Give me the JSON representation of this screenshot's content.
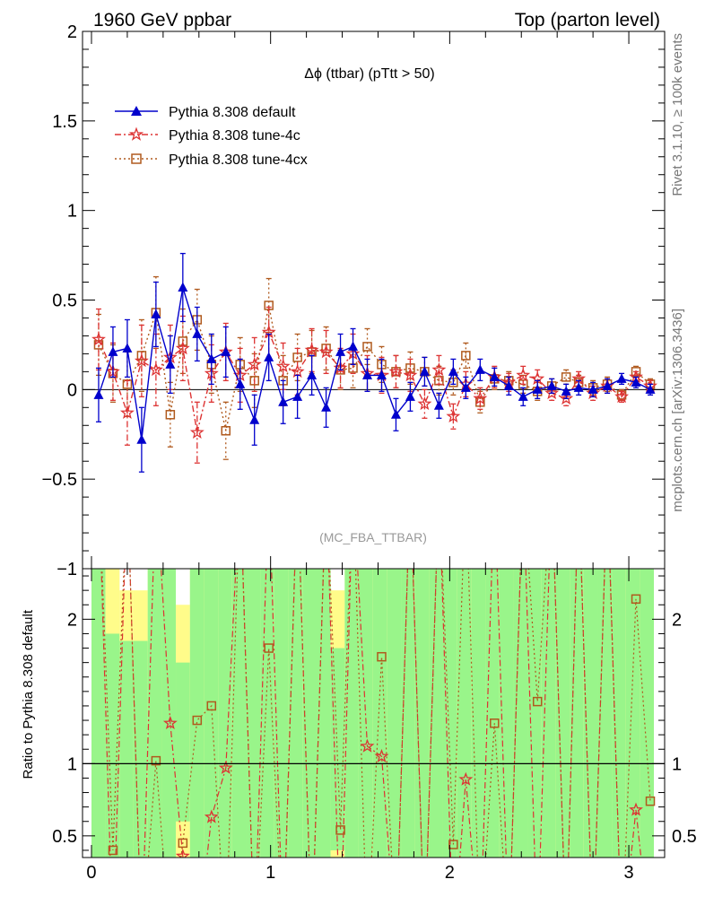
{
  "header": {
    "left": "1960 GeV ppbar",
    "right": "Top (parton level)"
  },
  "side_labels": {
    "rivet": "Rivet 3.1.10, ≥ 100k events",
    "mcplots": "mcplots.cern.ch [arXiv:1306.3436]"
  },
  "chart_data": [
    {
      "type": "line",
      "title": "Δϕ (ttbar) (pTtt > 50)",
      "watermark": "(MC_FBA_TTBAR)",
      "legend_position": "top-left",
      "xlim": [
        -0.05,
        3.2
      ],
      "ylim": [
        -1,
        2
      ],
      "x_ticks": [
        0,
        1,
        2,
        3
      ],
      "y_ticks": [
        -1,
        -0.5,
        0,
        0.5,
        1,
        1.5,
        2
      ],
      "y_tick_labels": [
        "−1",
        "−0.5",
        "0",
        "0.5",
        "1",
        "1.5",
        "2"
      ],
      "x": [
        0.04,
        0.12,
        0.2,
        0.28,
        0.36,
        0.44,
        0.51,
        0.59,
        0.67,
        0.75,
        0.83,
        0.91,
        0.99,
        1.07,
        1.15,
        1.23,
        1.31,
        1.39,
        1.46,
        1.54,
        1.62,
        1.7,
        1.78,
        1.86,
        1.94,
        2.02,
        2.09,
        2.17,
        2.25,
        2.33,
        2.41,
        2.49,
        2.57,
        2.65,
        2.72,
        2.8,
        2.88,
        2.96,
        3.04,
        3.12
      ],
      "series": [
        {
          "name": "Pythia 8.308 default",
          "color": "#0000cc",
          "marker": "triangle",
          "dash": "solid",
          "values": [
            -0.03,
            0.21,
            0.23,
            -0.28,
            0.42,
            0.14,
            0.57,
            0.31,
            0.17,
            0.21,
            0.03,
            -0.17,
            0.18,
            -0.07,
            -0.04,
            0.08,
            -0.1,
            0.21,
            0.24,
            0.08,
            0.08,
            -0.14,
            -0.04,
            0.1,
            -0.09,
            0.1,
            0.01,
            0.11,
            0.07,
            0.02,
            -0.04,
            0.0,
            0.02,
            -0.01,
            0.01,
            0.0,
            0.02,
            0.06,
            0.04,
            0.0
          ],
          "errors": [
            0.15,
            0.14,
            0.16,
            0.18,
            0.18,
            0.16,
            0.19,
            0.15,
            0.14,
            0.14,
            0.14,
            0.14,
            0.13,
            0.12,
            0.12,
            0.11,
            0.11,
            0.1,
            0.1,
            0.09,
            0.09,
            0.09,
            0.08,
            0.08,
            0.07,
            0.07,
            0.06,
            0.06,
            0.05,
            0.05,
            0.05,
            0.05,
            0.04,
            0.04,
            0.04,
            0.04,
            0.04,
            0.03,
            0.03,
            0.03
          ]
        },
        {
          "name": "Pythia 8.308 tune-4c",
          "color": "#dd3333",
          "marker": "star",
          "dash": "dashdot",
          "values": [
            0.28,
            0.1,
            -0.13,
            0.16,
            0.11,
            0.18,
            0.23,
            -0.24,
            0.09,
            0.21,
            0.08,
            0.14,
            0.32,
            0.13,
            0.1,
            0.22,
            0.21,
            0.12,
            0.2,
            0.09,
            0.08,
            0.1,
            0.08,
            -0.08,
            0.11,
            -0.15,
            0.03,
            -0.05,
            0.07,
            0.04,
            0.08,
            0.06,
            -0.02,
            -0.05,
            0.06,
            -0.02,
            0.02,
            -0.04,
            0.07,
            0.02
          ],
          "errors": [
            0.17,
            0.16,
            0.18,
            0.2,
            0.2,
            0.18,
            0.18,
            0.17,
            0.16,
            0.16,
            0.15,
            0.15,
            0.14,
            0.13,
            0.13,
            0.12,
            0.12,
            0.11,
            0.11,
            0.1,
            0.1,
            0.09,
            0.09,
            0.08,
            0.08,
            0.07,
            0.07,
            0.06,
            0.06,
            0.05,
            0.05,
            0.05,
            0.04,
            0.04,
            0.04,
            0.04,
            0.04,
            0.03,
            0.03,
            0.03
          ]
        },
        {
          "name": "Pythia 8.308 tune-4cx",
          "color": "#b05a1e",
          "marker": "square",
          "dash": "dotted",
          "values": [
            0.25,
            0.09,
            0.03,
            0.19,
            0.43,
            -0.14,
            0.27,
            0.39,
            0.14,
            -0.23,
            0.14,
            0.05,
            0.47,
            0.05,
            0.18,
            0.21,
            0.23,
            0.11,
            0.12,
            0.24,
            0.14,
            0.1,
            0.12,
            0.1,
            0.05,
            0.04,
            0.19,
            -0.07,
            0.06,
            0.05,
            0.03,
            -0.01,
            0.02,
            0.07,
            0.04,
            0.01,
            0.03,
            -0.03,
            0.1,
            0.03
          ],
          "errors": [
            0.17,
            0.16,
            0.18,
            0.2,
            0.2,
            0.18,
            0.18,
            0.17,
            0.16,
            0.16,
            0.15,
            0.15,
            0.15,
            0.14,
            0.13,
            0.12,
            0.12,
            0.11,
            0.11,
            0.1,
            0.1,
            0.09,
            0.09,
            0.08,
            0.08,
            0.07,
            0.07,
            0.06,
            0.06,
            0.05,
            0.05,
            0.05,
            0.04,
            0.04,
            0.04,
            0.04,
            0.04,
            0.03,
            0.03,
            0.03
          ]
        }
      ]
    },
    {
      "type": "line",
      "ylabel": "Ratio to Pythia 8.308 default",
      "xlim": [
        -0.05,
        3.2
      ],
      "ylim": [
        0.35,
        2.35
      ],
      "x_ticks": [
        0,
        1,
        2,
        3
      ],
      "y_ticks": [
        0.5,
        1,
        2
      ],
      "reference_line": 1,
      "band_colors": {
        "inner": "#99f58a",
        "outer": "#fffc8a"
      },
      "band_x": [
        0,
        0.078,
        0.157,
        0.235,
        0.314,
        0.393,
        0.471,
        0.55,
        0.628,
        0.707,
        0.785,
        0.864,
        0.942,
        1.021,
        1.1,
        1.178,
        1.257,
        1.335,
        1.414,
        1.492,
        1.571,
        1.649,
        1.728,
        1.806,
        1.885,
        1.963,
        2.042,
        2.12,
        2.199,
        2.277,
        2.356,
        2.434,
        2.513,
        2.591,
        2.67,
        2.748,
        2.827,
        2.905,
        2.984,
        3.063,
        3.14
      ],
      "band_inner": [
        [
          0.35,
          2.35
        ],
        [
          0.35,
          1.9
        ],
        [
          0.35,
          1.85
        ],
        [
          0.35,
          1.85
        ],
        [
          0.35,
          2.35
        ],
        [
          0.35,
          2.35
        ],
        [
          0.6,
          1.7
        ],
        [
          0.35,
          2.35
        ],
        [
          0.35,
          2.35
        ],
        [
          0.35,
          2.35
        ],
        [
          0.35,
          2.35
        ],
        [
          0.35,
          2.35
        ],
        [
          0.35,
          2.35
        ],
        [
          0.35,
          2.35
        ],
        [
          0.35,
          2.35
        ],
        [
          0.35,
          2.35
        ],
        [
          0.35,
          2.35
        ],
        [
          0.4,
          1.8
        ],
        [
          0.35,
          2.35
        ],
        [
          0.35,
          2.35
        ],
        [
          0.35,
          2.35
        ],
        [
          0.35,
          2.35
        ],
        [
          0.35,
          2.35
        ],
        [
          0.35,
          2.35
        ],
        [
          0.35,
          2.35
        ],
        [
          0.35,
          2.35
        ],
        [
          0.35,
          2.35
        ],
        [
          0.35,
          2.35
        ],
        [
          0.35,
          2.35
        ],
        [
          0.35,
          2.35
        ],
        [
          0.35,
          2.35
        ],
        [
          0.35,
          2.35
        ],
        [
          0.35,
          2.35
        ],
        [
          0.35,
          2.35
        ],
        [
          0.35,
          2.35
        ],
        [
          0.35,
          2.35
        ],
        [
          0.35,
          2.35
        ],
        [
          0.35,
          2.35
        ],
        [
          0.35,
          2.35
        ],
        [
          0.35,
          2.35
        ]
      ],
      "band_outer": [
        [
          0.35,
          2.35
        ],
        [
          0.35,
          2.35
        ],
        [
          0.35,
          2.2
        ],
        [
          0.35,
          2.2
        ],
        [
          0.35,
          2.35
        ],
        [
          0.35,
          2.35
        ],
        [
          0.35,
          2.1
        ],
        [
          0.35,
          2.35
        ],
        [
          0.35,
          2.35
        ],
        [
          0.35,
          2.35
        ],
        [
          0.35,
          2.35
        ],
        [
          0.35,
          2.35
        ],
        [
          0.35,
          2.35
        ],
        [
          0.35,
          2.35
        ],
        [
          0.35,
          2.35
        ],
        [
          0.35,
          2.35
        ],
        [
          0.35,
          2.35
        ],
        [
          0.35,
          2.2
        ],
        [
          0.35,
          2.35
        ],
        [
          0.35,
          2.35
        ],
        [
          0.35,
          2.35
        ],
        [
          0.35,
          2.35
        ],
        [
          0.35,
          2.35
        ],
        [
          0.35,
          2.35
        ],
        [
          0.35,
          2.35
        ],
        [
          0.35,
          2.35
        ],
        [
          0.35,
          2.35
        ],
        [
          0.35,
          2.35
        ],
        [
          0.35,
          2.35
        ],
        [
          0.35,
          2.35
        ],
        [
          0.35,
          2.35
        ],
        [
          0.35,
          2.35
        ],
        [
          0.35,
          2.35
        ],
        [
          0.35,
          2.35
        ],
        [
          0.35,
          2.35
        ],
        [
          0.35,
          2.35
        ],
        [
          0.35,
          2.35
        ],
        [
          0.35,
          2.35
        ],
        [
          0.35,
          2.35
        ],
        [
          0.35,
          2.35
        ]
      ],
      "series": [
        {
          "name": "Pythia 8.308 tune-4c",
          "color": "#dd3333",
          "marker": "star",
          "dash": "dashdot",
          "values": [
            null,
            null,
            null,
            null,
            null,
            1.28,
            0.36,
            null,
            0.63,
            0.97,
            null,
            null,
            null,
            null,
            null,
            null,
            null,
            null,
            null,
            1.12,
            1.05,
            null,
            null,
            null,
            null,
            null,
            0.89,
            null,
            null,
            null,
            null,
            null,
            null,
            null,
            null,
            null,
            null,
            null,
            0.68,
            null
          ]
        },
        {
          "name": "Pythia 8.308 tune-4cx",
          "color": "#b05a1e",
          "marker": "square",
          "dash": "dotted",
          "values": [
            null,
            0.4,
            null,
            null,
            1.02,
            null,
            0.45,
            1.3,
            1.4,
            null,
            null,
            null,
            1.8,
            null,
            null,
            null,
            null,
            0.54,
            null,
            null,
            1.74,
            null,
            null,
            null,
            null,
            0.44,
            null,
            null,
            1.28,
            null,
            null,
            1.43,
            null,
            null,
            null,
            null,
            null,
            null,
            2.14,
            0.74
          ]
        }
      ]
    }
  ]
}
